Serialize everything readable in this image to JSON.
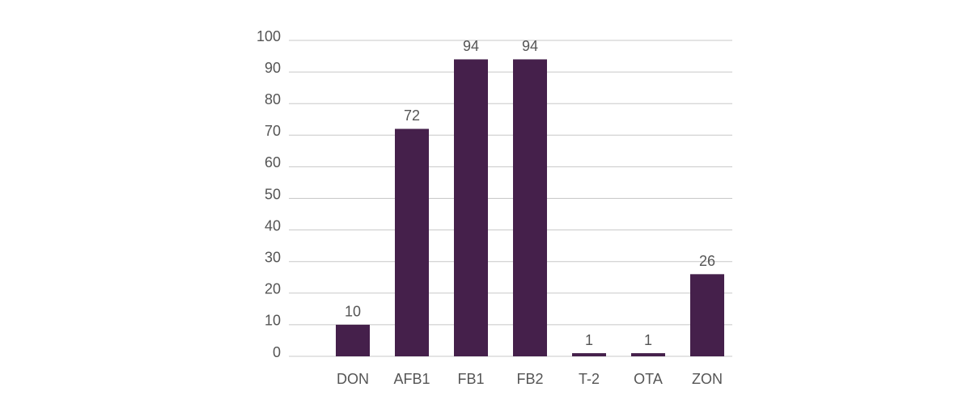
{
  "chart_data": {
    "type": "bar",
    "categories": [
      "DON",
      "AFB1",
      "FB1",
      "FB2",
      "T-2",
      "OTA",
      "ZON"
    ],
    "values": [
      10,
      72,
      94,
      94,
      1,
      1,
      26
    ],
    "color": "#45204b",
    "ylim": [
      0,
      100
    ],
    "yticks": [
      0,
      10,
      20,
      30,
      40,
      50,
      60,
      70,
      80,
      90,
      100
    ],
    "grid": true,
    "data_labels": true
  }
}
